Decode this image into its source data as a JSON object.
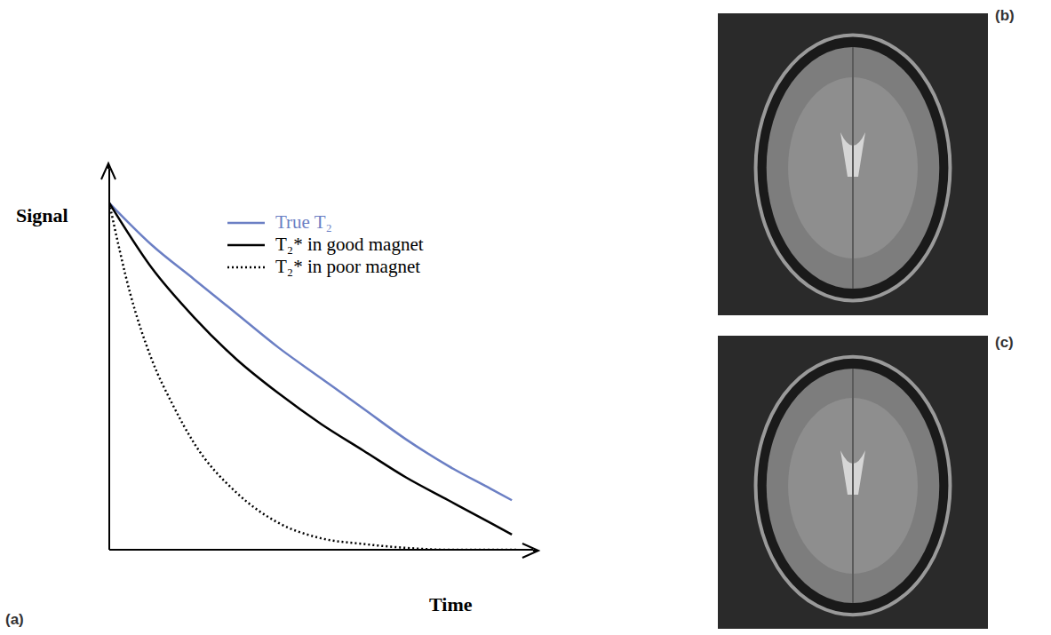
{
  "chart_data": {
    "type": "line",
    "x_label": "Time",
    "y_label": "Signal",
    "xlim": [
      0,
      10
    ],
    "ylim": [
      0,
      1
    ],
    "xticks": [],
    "yticks": [],
    "tick_labels": false,
    "grid": false,
    "legend": "top",
    "series": [
      {
        "name": "True T₂",
        "color": "#6b7fc4",
        "line_style": "solid",
        "x": [
          0,
          1,
          2,
          3,
          4,
          5,
          6,
          7,
          8,
          9,
          9.5
        ],
        "values": [
          0.91,
          0.8,
          0.71,
          0.62,
          0.53,
          0.45,
          0.37,
          0.29,
          0.22,
          0.16,
          0.13
        ]
      },
      {
        "name": "T₂* in good magnet",
        "color": "#000000",
        "line_style": "solid",
        "x": [
          0,
          1,
          2,
          3,
          4,
          5,
          6,
          7,
          8,
          9,
          9.5
        ],
        "values": [
          0.91,
          0.74,
          0.61,
          0.5,
          0.41,
          0.33,
          0.26,
          0.19,
          0.13,
          0.07,
          0.04
        ]
      },
      {
        "name": "T₂* in poor magnet",
        "color": "#000000",
        "line_style": "dotted",
        "x": [
          0,
          0.5,
          1,
          1.5,
          2,
          3,
          4,
          5,
          6,
          7,
          8,
          9.6
        ],
        "values": [
          0.91,
          0.67,
          0.5,
          0.38,
          0.28,
          0.15,
          0.07,
          0.03,
          0.015,
          0.005,
          0,
          0
        ]
      }
    ]
  },
  "panel_labels": [
    "(a)",
    "(b)",
    "(c)"
  ]
}
